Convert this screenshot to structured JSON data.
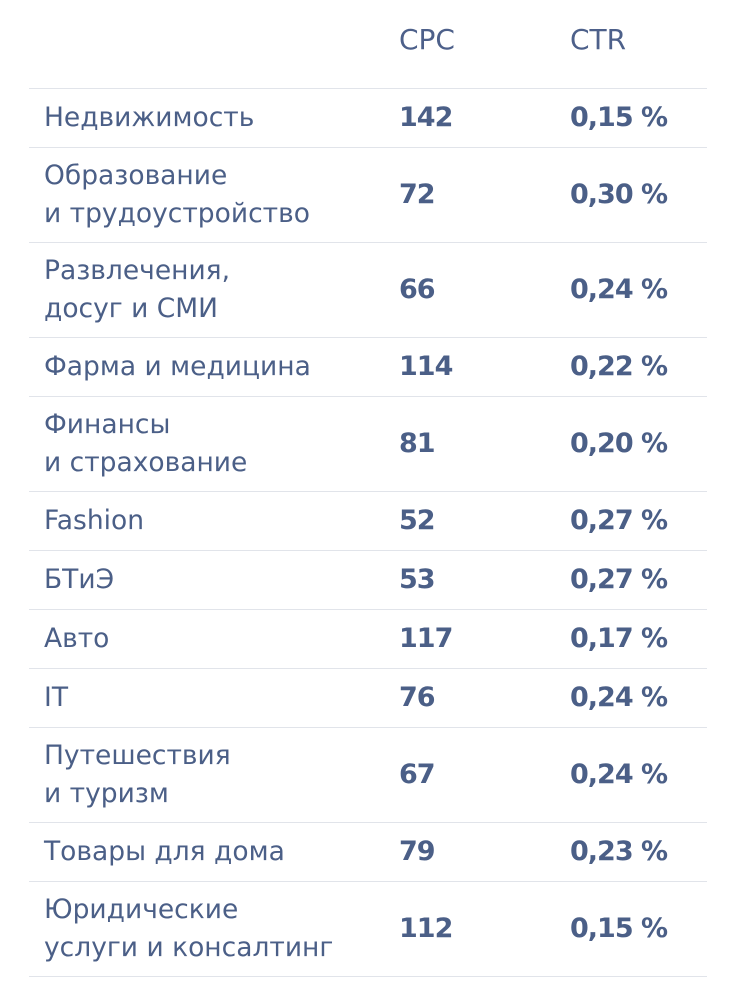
{
  "chart_data": {
    "type": "table",
    "columns": [
      "",
      "CPC",
      "CTR"
    ],
    "rows": [
      {
        "name": "Недвижимость",
        "cpc": "142",
        "ctr": "0,15 %"
      },
      {
        "name": "Образование\nи трудоустройство",
        "cpc": "72",
        "ctr": "0,30 %"
      },
      {
        "name": "Развлечения,\nдосуг и СМИ",
        "cpc": "66",
        "ctr": "0,24 %"
      },
      {
        "name": "Фарма и медицина",
        "cpc": "114",
        "ctr": "0,22 %"
      },
      {
        "name": "Финансы\nи страхование",
        "cpc": "81",
        "ctr": "0,20 %"
      },
      {
        "name": "Fashion",
        "cpc": "52",
        "ctr": "0,27 %"
      },
      {
        "name": "БТиЭ",
        "cpc": "53",
        "ctr": "0,27 %"
      },
      {
        "name": "Авто",
        "cpc": "117",
        "ctr": "0,17 %"
      },
      {
        "name": "IT",
        "cpc": "76",
        "ctr": "0,24 %"
      },
      {
        "name": "Путешествия\nи туризм",
        "cpc": "67",
        "ctr": "0,24 %"
      },
      {
        "name": "Товары для дома",
        "cpc": "79",
        "ctr": "0,23 %"
      },
      {
        "name": "Юридические\nуслуги и консалтинг",
        "cpc": "112",
        "ctr": "0,15 %"
      }
    ]
  },
  "colors": {
    "text": "#4b5f87",
    "divider": "#e1e4ea",
    "background": "#ffffff"
  }
}
